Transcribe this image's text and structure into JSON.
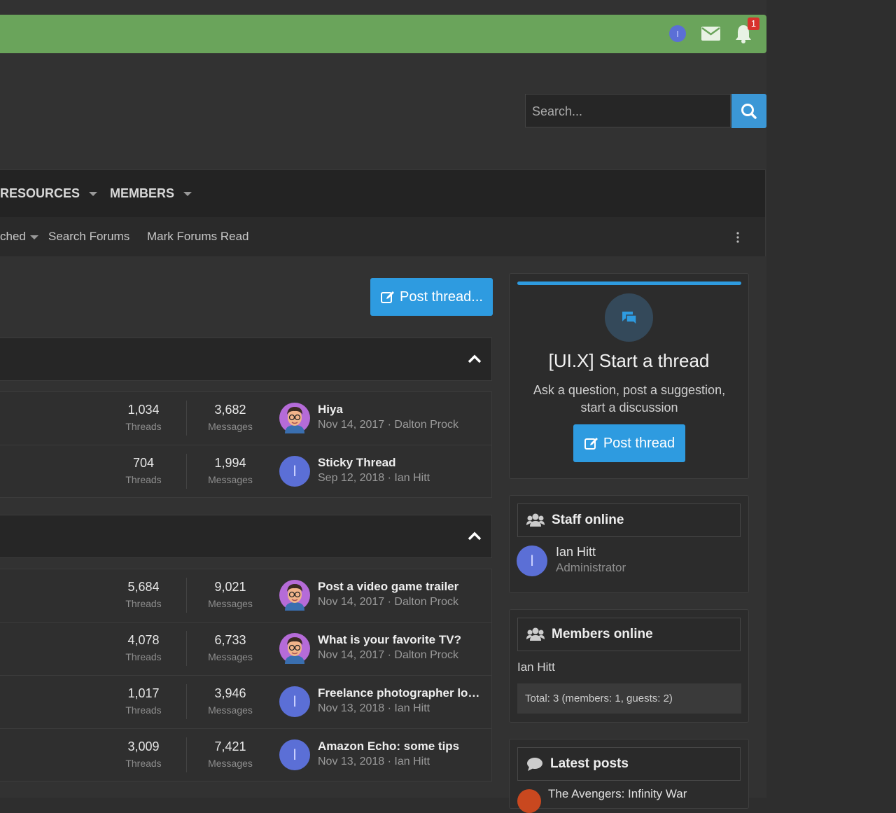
{
  "topbar": {
    "avatar_letter": "I",
    "alert_count": "1"
  },
  "search": {
    "placeholder": "Search..."
  },
  "nav": {
    "items": [
      "RESOURCES",
      "MEMBERS"
    ]
  },
  "subnav": {
    "items": [
      "ched",
      "Search Forums",
      "Mark Forums Read"
    ]
  },
  "post_thread_button": "Post thread...",
  "labels": {
    "threads": "Threads",
    "messages": "Messages"
  },
  "sections": [
    {
      "rows": [
        {
          "threads": "1,034",
          "messages": "3,682",
          "title": "Hiya",
          "meta": "Nov 14, 2017 · Dalton Prock"
        },
        {
          "threads": "704",
          "messages": "1,994",
          "title": "Sticky Thread",
          "meta": "Sep 12, 2018 · Ian Hitt",
          "avatar_letter": "I"
        }
      ]
    },
    {
      "rows": [
        {
          "threads": "5,684",
          "messages": "9,021",
          "title": "Post a video game trailer",
          "meta": "Nov 14, 2017 · Dalton Prock"
        },
        {
          "threads": "4,078",
          "messages": "6,733",
          "title": "What is your favorite TV?",
          "meta": "Nov 14, 2017 · Dalton Prock"
        },
        {
          "threads": "1,017",
          "messages": "3,946",
          "title": "Freelance photographer lo…",
          "meta": "Nov 13, 2018 · Ian Hitt",
          "avatar_letter": "I"
        },
        {
          "threads": "3,009",
          "messages": "7,421",
          "title": "Amazon Echo: some tips",
          "meta": "Nov 13, 2018 · Ian Hitt",
          "avatar_letter": "I"
        }
      ]
    }
  ],
  "sidebar": {
    "start_thread": {
      "title": "[UI.X] Start a thread",
      "text": "Ask a question, post a suggestion, start a discussion",
      "button": "Post thread"
    },
    "staff_online": {
      "title": "Staff online",
      "members": [
        {
          "name": "Ian Hitt",
          "role": "Administrator",
          "avatar_letter": "I"
        }
      ]
    },
    "members_online": {
      "title": "Members online",
      "members": [
        "Ian Hitt"
      ],
      "total": "Total: 3 (members: 1, guests: 2)"
    },
    "latest_posts": {
      "title": "Latest posts",
      "posts": [
        "The Avengers: Infinity War"
      ]
    }
  }
}
